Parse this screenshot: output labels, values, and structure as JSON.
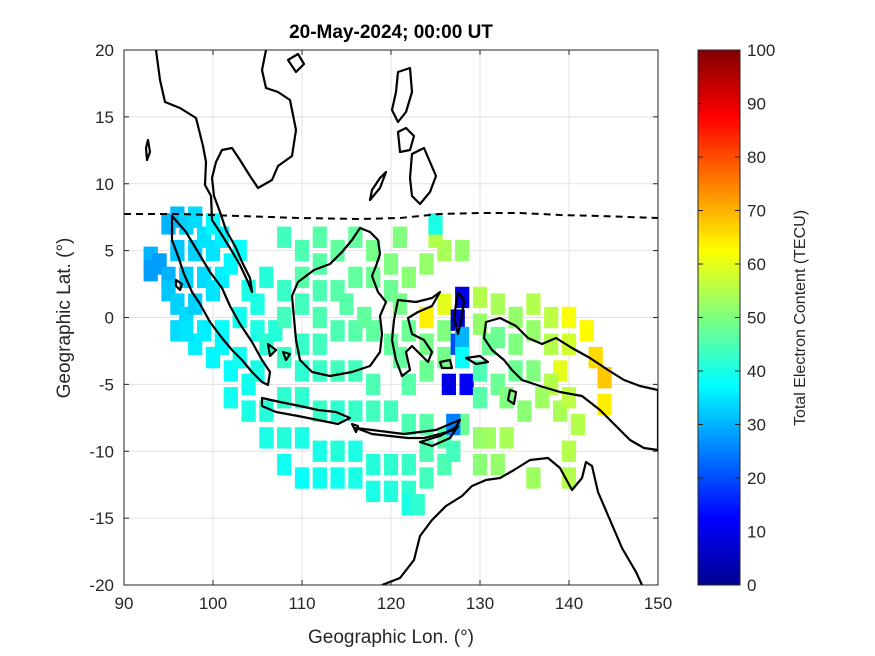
{
  "title": "20-May-2024; 00:00 UT",
  "chart_data": {
    "type": "heatmap",
    "title": "20-May-2024; 00:00 UT",
    "xlabel": "Geographic Lon. (°)",
    "ylabel": "Geographic Lat. (°)",
    "xlim": [
      90,
      150
    ],
    "ylim": [
      -20,
      20
    ],
    "xticks": [
      "90",
      "100",
      "110",
      "120",
      "130",
      "140",
      "150"
    ],
    "yticks": [
      "20",
      "15",
      "10",
      "5",
      "0",
      "-5",
      "-10",
      "-15",
      "-20"
    ],
    "grid": true,
    "colorbar": {
      "label": "Total Electron Content (TECU)",
      "range": [
        0,
        100
      ],
      "ticks": [
        "100",
        "90",
        "80",
        "70",
        "60",
        "50",
        "40",
        "30",
        "20",
        "10",
        "0"
      ],
      "colormap": "jet"
    },
    "data_note": "Approximate TEC values (TECU) read from the map; cell at [lon, lat]",
    "cells": [
      [
        93,
        4.5,
        30
      ],
      [
        93,
        3.5,
        28
      ],
      [
        94,
        4,
        28
      ],
      [
        95,
        3,
        30
      ],
      [
        95,
        7,
        30
      ],
      [
        96,
        7.5,
        31
      ],
      [
        97,
        7,
        33
      ],
      [
        98,
        7.5,
        34
      ],
      [
        95,
        2,
        32
      ],
      [
        96,
        1,
        33
      ],
      [
        97,
        0,
        34
      ],
      [
        98,
        1,
        33
      ],
      [
        97,
        3,
        33
      ],
      [
        99,
        3,
        34
      ],
      [
        100,
        2,
        35
      ],
      [
        101,
        3,
        36
      ],
      [
        96,
        5,
        32
      ],
      [
        98,
        5,
        33
      ],
      [
        100,
        5,
        35
      ],
      [
        102,
        4,
        37
      ],
      [
        99,
        6,
        35
      ],
      [
        101,
        6,
        36
      ],
      [
        103,
        5,
        38
      ],
      [
        100,
        7,
        37
      ],
      [
        96,
        -1,
        34
      ],
      [
        98,
        -2,
        36
      ],
      [
        100,
        -3,
        37
      ],
      [
        102,
        -4,
        38
      ],
      [
        104,
        -5,
        39
      ],
      [
        97,
        -1,
        35
      ],
      [
        99,
        -1,
        36
      ],
      [
        101,
        -1,
        38
      ],
      [
        101,
        -2,
        37
      ],
      [
        103,
        -3,
        39
      ],
      [
        105,
        -4,
        40
      ],
      [
        103,
        0,
        39
      ],
      [
        105,
        1,
        40
      ],
      [
        104,
        2,
        40
      ],
      [
        106,
        3,
        41
      ],
      [
        105,
        -1,
        40
      ],
      [
        102,
        -6,
        39
      ],
      [
        104,
        -7,
        40
      ],
      [
        106,
        -7,
        41
      ],
      [
        108,
        -6,
        42
      ],
      [
        110,
        -6,
        42
      ],
      [
        112,
        -7,
        43
      ],
      [
        114,
        -7,
        42
      ],
      [
        116,
        -7,
        43
      ],
      [
        118,
        -7,
        44
      ],
      [
        120,
        -7,
        44
      ],
      [
        122,
        -8,
        45
      ],
      [
        124,
        -8,
        46
      ],
      [
        126,
        -9,
        46
      ],
      [
        128,
        -8,
        48
      ],
      [
        106,
        -9,
        40
      ],
      [
        108,
        -9,
        41
      ],
      [
        110,
        -9,
        40
      ],
      [
        112,
        -10,
        40
      ],
      [
        114,
        -10,
        41
      ],
      [
        116,
        -10,
        40
      ],
      [
        118,
        -11,
        41
      ],
      [
        120,
        -11,
        42
      ],
      [
        122,
        -11,
        43
      ],
      [
        124,
        -10,
        45
      ],
      [
        108,
        -11,
        39
      ],
      [
        110,
        -12,
        38
      ],
      [
        112,
        -12,
        39
      ],
      [
        114,
        -12,
        39
      ],
      [
        116,
        -12,
        40
      ],
      [
        118,
        -13,
        40
      ],
      [
        120,
        -13,
        41
      ],
      [
        122,
        -13,
        42
      ],
      [
        124,
        -12,
        44
      ],
      [
        126,
        -11,
        45
      ],
      [
        127,
        -10,
        44
      ],
      [
        122,
        -14,
        40
      ],
      [
        123,
        -14,
        42
      ],
      [
        106,
        -2,
        42
      ],
      [
        108,
        -3,
        43
      ],
      [
        110,
        -4,
        42
      ],
      [
        112,
        -4,
        43
      ],
      [
        114,
        -4,
        44
      ],
      [
        116,
        -4,
        44
      ],
      [
        118,
        -5,
        45
      ],
      [
        107,
        -1,
        41
      ],
      [
        108,
        0,
        44
      ],
      [
        110,
        1,
        44
      ],
      [
        112,
        2,
        45
      ],
      [
        114,
        2,
        46
      ],
      [
        116,
        3,
        47
      ],
      [
        118,
        3,
        48
      ],
      [
        108,
        2,
        43
      ],
      [
        110,
        3,
        46
      ],
      [
        112,
        4,
        46
      ],
      [
        114,
        5,
        47
      ],
      [
        116,
        6,
        47
      ],
      [
        118,
        5,
        49
      ],
      [
        120,
        4,
        50
      ],
      [
        120,
        2,
        48
      ],
      [
        110,
        -2,
        43
      ],
      [
        112,
        -2,
        44
      ],
      [
        114,
        -1,
        45
      ],
      [
        116,
        -1,
        46
      ],
      [
        118,
        -1,
        47
      ],
      [
        120,
        -2,
        47
      ],
      [
        115,
        1,
        46
      ],
      [
        117,
        0,
        47
      ],
      [
        112,
        0,
        45
      ],
      [
        108,
        6,
        44
      ],
      [
        110,
        5,
        45
      ],
      [
        112,
        6,
        46
      ],
      [
        121,
        -3,
        47
      ],
      [
        122,
        -5,
        46
      ],
      [
        124,
        -4,
        48
      ],
      [
        126,
        -3,
        49
      ],
      [
        121,
        1,
        49
      ],
      [
        122,
        3,
        51
      ],
      [
        124,
        4,
        52
      ],
      [
        126,
        5,
        54
      ],
      [
        128,
        5,
        52
      ],
      [
        122,
        -1,
        48
      ],
      [
        124,
        -2,
        49
      ],
      [
        126,
        -1,
        50
      ],
      [
        124,
        0,
        64
      ],
      [
        126,
        1,
        60
      ],
      [
        125,
        6,
        55
      ],
      [
        125,
        7,
        40
      ],
      [
        121,
        6,
        50
      ],
      [
        127.5,
        -0.2,
        8
      ],
      [
        127.5,
        -2,
        20
      ],
      [
        128,
        -1.5,
        30
      ],
      [
        126.5,
        -5,
        10
      ],
      [
        128.5,
        -5,
        12
      ],
      [
        127,
        -8,
        25
      ],
      [
        128,
        1.5,
        10
      ],
      [
        128,
        -3,
        38
      ],
      [
        130,
        1.5,
        55
      ],
      [
        130,
        -0.5,
        52
      ],
      [
        132,
        1,
        54
      ],
      [
        132,
        -1.5,
        48
      ],
      [
        134,
        0,
        52
      ],
      [
        134,
        -2,
        50
      ],
      [
        136,
        1,
        55
      ],
      [
        136,
        -1,
        52
      ],
      [
        138,
        0,
        56
      ],
      [
        138,
        -2,
        55
      ],
      [
        139,
        -4,
        60
      ],
      [
        140,
        0,
        62
      ],
      [
        140,
        -2,
        58
      ],
      [
        142,
        -1,
        63
      ],
      [
        143,
        -3,
        66
      ],
      [
        144,
        -4.5,
        68
      ],
      [
        144,
        -6.5,
        64
      ],
      [
        138,
        -5,
        55
      ],
      [
        136,
        -4,
        50
      ],
      [
        134,
        -4,
        48
      ],
      [
        132,
        -5,
        48
      ],
      [
        130,
        -6,
        46
      ],
      [
        130,
        -4,
        45
      ],
      [
        131,
        -2,
        48
      ],
      [
        133,
        -6,
        50
      ],
      [
        135,
        -7,
        51
      ],
      [
        137,
        -6,
        53
      ],
      [
        139,
        -7,
        54
      ],
      [
        140,
        -6,
        56
      ],
      [
        141,
        -8,
        55
      ],
      [
        130,
        -9,
        52
      ],
      [
        131,
        -9,
        53
      ],
      [
        133,
        -9,
        54
      ],
      [
        140,
        -10,
        55
      ],
      [
        130,
        -11,
        51
      ],
      [
        132,
        -11,
        52
      ],
      [
        140,
        -12,
        55
      ],
      [
        136,
        -12,
        53
      ]
    ]
  }
}
